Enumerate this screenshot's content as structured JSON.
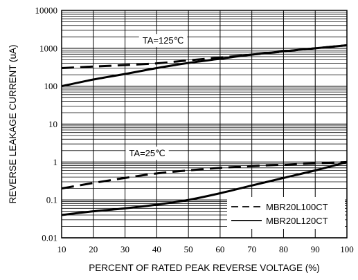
{
  "chart_data": {
    "type": "line",
    "title": "",
    "xlabel": "PERCENT OF RATED PEAK REVERSE VOLTAGE (%)",
    "ylabel": "REVERSE LEAKAGE CURRENT (uA)",
    "xlim": [
      10,
      100
    ],
    "ylim": [
      0.01,
      10000
    ],
    "yscale": "log",
    "x_ticks": [
      "10",
      "20",
      "30",
      "40",
      "50",
      "60",
      "70",
      "80",
      "90",
      "100"
    ],
    "y_ticks": [
      "0.01",
      "0.1",
      "1",
      "10",
      "100",
      "1000",
      "10000"
    ],
    "grid": true,
    "legend_position": "bottom-right",
    "annotations": [
      {
        "text": "TA=125℃",
        "x": 42,
        "y": 1500
      },
      {
        "text": "TA=25℃",
        "x": 37,
        "y": 1.6
      }
    ],
    "series": [
      {
        "name": "MBR20L100CT",
        "style": "dashed",
        "condition": "TA=125℃",
        "x": [
          10,
          20,
          30,
          40,
          50,
          60,
          70,
          80,
          90,
          100
        ],
        "y": [
          300,
          330,
          360,
          400,
          480,
          570,
          680,
          820,
          1000,
          1200
        ]
      },
      {
        "name": "MBR20L120CT",
        "style": "solid",
        "condition": "TA=125℃",
        "x": [
          10,
          20,
          30,
          40,
          50,
          60,
          70,
          80,
          90,
          100
        ],
        "y": [
          100,
          150,
          210,
          300,
          410,
          530,
          680,
          830,
          1000,
          1200
        ]
      },
      {
        "name": "MBR20L100CT",
        "style": "dashed",
        "condition": "TA=25℃",
        "x": [
          10,
          20,
          30,
          40,
          50,
          60,
          70,
          80,
          90,
          100
        ],
        "y": [
          0.2,
          0.28,
          0.38,
          0.5,
          0.6,
          0.7,
          0.78,
          0.85,
          0.92,
          1.0
        ]
      },
      {
        "name": "MBR20L120CT",
        "style": "solid",
        "condition": "TA=25℃",
        "x": [
          10,
          20,
          30,
          40,
          50,
          60,
          70,
          80,
          90,
          100
        ],
        "y": [
          0.04,
          0.05,
          0.06,
          0.075,
          0.1,
          0.15,
          0.24,
          0.38,
          0.6,
          1.0
        ]
      }
    ],
    "legend": [
      {
        "label": "MBR20L100CT",
        "style": "dashed"
      },
      {
        "label": "MBR20L120CT",
        "style": "solid"
      }
    ]
  }
}
